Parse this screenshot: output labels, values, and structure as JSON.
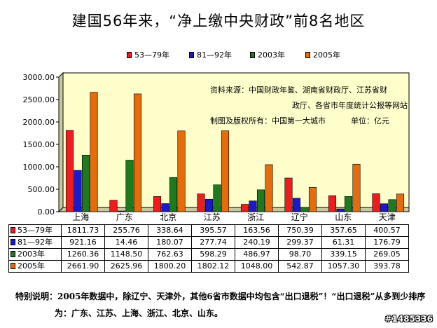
{
  "chart_data": {
    "type": "bar",
    "title": "建国56年来，“净上缴中央财政”前8名地区",
    "categories": [
      "上海",
      "广东",
      "北京",
      "江苏",
      "浙江",
      "辽宁",
      "山东",
      "天津"
    ],
    "series": [
      {
        "name": "53—79年",
        "color": "#ee1c1c",
        "values": [
          1811.73,
          255.76,
          338.64,
          395.57,
          163.56,
          750.39,
          357.65,
          400.57
        ],
        "labels": [
          "1811.73",
          "255.76",
          "338.64",
          "395.57",
          "163.56",
          "750.39",
          "357.65",
          "400.57"
        ]
      },
      {
        "name": "81—92年",
        "color": "#1a1acc",
        "values": [
          921.16,
          14.46,
          180.07,
          277.74,
          240.19,
          299.37,
          61.31,
          176.79
        ],
        "labels": [
          "921.16",
          "14.46",
          "180.07",
          "277.74",
          "240.19",
          "299.37",
          "61.31",
          "176.79"
        ]
      },
      {
        "name": "2003年",
        "color": "#1f7a1f",
        "values": [
          1260.36,
          1148.5,
          762.63,
          598.29,
          486.97,
          98.7,
          339.15,
          269.05
        ],
        "labels": [
          "1260.36",
          "1148.50",
          "762.63",
          "598.29",
          "486.97",
          "98.70",
          "339.15",
          "269.05"
        ]
      },
      {
        "name": "2005年",
        "color": "#e46c0a",
        "values": [
          2661.9,
          2625.96,
          1800.2,
          1802.12,
          1048.0,
          542.87,
          1057.3,
          393.78
        ],
        "labels": [
          "2661.90",
          "2625.96",
          "1800.20",
          "1802.12",
          "1048.00",
          "542.87",
          "1057.30",
          "393.78"
        ]
      }
    ],
    "ylim": [
      0,
      3000
    ],
    "yticks": [
      "0.00",
      "500.00",
      "1000.00",
      "1500.00",
      "2000.00",
      "2500.00",
      "3000.00"
    ],
    "ytick_values": [
      0,
      500,
      1000,
      1500,
      2000,
      2500,
      3000
    ],
    "grid": false,
    "plot_background": "#ffffcc",
    "legend_position": "top",
    "data_table": true
  },
  "source_note": {
    "line1": "资料来源：中国财政年鉴、湖南省财政厅、江苏省财",
    "line2": "政厅、各省市年度统计公报等网站",
    "line3a": "制图及版权所有：中国第一大城市",
    "line3b": "单位：亿元"
  },
  "footnote": {
    "line1": "特别说明：2005年数据中，除辽宁、天津外，其他6省市数据中均包含“出口退税”！“出口退税”从多到少排序",
    "line2": "为：广东、江苏、上海、浙江、北京、山东。"
  },
  "watermark": "#1485336"
}
